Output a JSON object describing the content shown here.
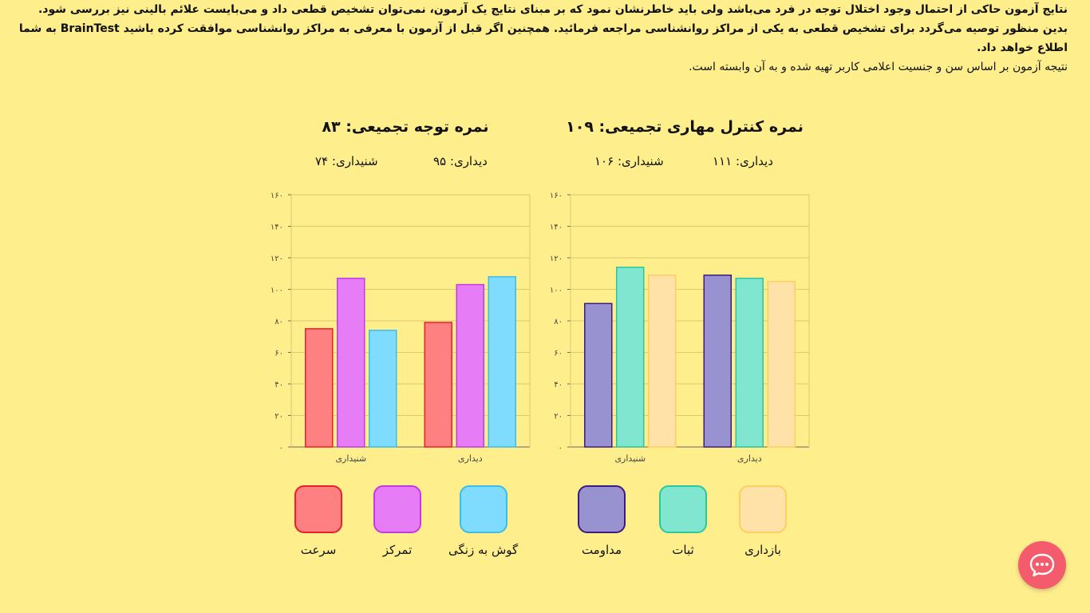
{
  "intro": {
    "line1": "نتایج آزمون حاکی از احتمال وجود اختلال توجه در فرد می‌باشد ولی باید خاطرنشان نمود که بر مبنای نتایج یک آزمون، نمی‌توان تشخیص قطعی داد و می‌بایست علائم بالینی نیز بررسی شود. بدین منظور توصیه می‌گردد برای تشخیص قطعی به یکی از مراکز روانشناسی مراجعه فرمائید. همچنین اگر قبل از آزمون با معرفی به مراکز روانشناسی موافقت کرده باشید BrainTest به شما اطلاع خواهد داد.",
    "line2": "نتیجه آزمون بر اساس سن و جنسیت اعلامی کاربر تهیه شده و به آن وابسته است."
  },
  "control_panel": {
    "title": "نمره کنترل مهاری تجمیعی: ۱۰۹",
    "visual": "دیداری: ۱۱۱",
    "auditory": "شنیداری: ۱۰۶"
  },
  "attention_panel": {
    "title": "نمره توجه تجمیعی: ۸۳",
    "visual": "دیداری: ۹۵",
    "auditory": "شنیداری: ۷۴"
  },
  "chart_data": [
    {
      "type": "bar",
      "categories": [
        "شنیداری",
        "دیداری"
      ],
      "ylim": [
        0,
        160
      ],
      "yticks": [
        "۰",
        "۲۰",
        "۴۰",
        "۶۰",
        "۸۰",
        "۱۰۰",
        "۱۲۰",
        "۱۴۰",
        "۱۶۰"
      ],
      "grid": true,
      "series": [
        {
          "name": "مداومت",
          "values": [
            91,
            109
          ],
          "fill": "#9893D0",
          "stroke": "#3D1A80"
        },
        {
          "name": "ثبات",
          "values": [
            114,
            107
          ],
          "fill": "#80E6CF",
          "stroke": "#2BC79A"
        },
        {
          "name": "بازداری",
          "values": [
            109,
            105
          ],
          "fill": "#FFE2A8",
          "stroke": "#FFCE63"
        }
      ]
    },
    {
      "type": "bar",
      "categories": [
        "شنیداری",
        "دیداری"
      ],
      "ylim": [
        0,
        160
      ],
      "yticks": [
        "۰",
        "۲۰",
        "۴۰",
        "۶۰",
        "۸۰",
        "۱۰۰",
        "۱۲۰",
        "۱۴۰",
        "۱۶۰"
      ],
      "grid": true,
      "series": [
        {
          "name": "سرعت",
          "values": [
            75,
            79
          ],
          "fill": "#FF8080",
          "stroke": "#E8202A"
        },
        {
          "name": "تمرکز",
          "values": [
            107,
            103
          ],
          "fill": "#E67CF6",
          "stroke": "#C23AE6"
        },
        {
          "name": "گوش به زنگی",
          "values": [
            74,
            108
          ],
          "fill": "#80DCFF",
          "stroke": "#3DBDE6"
        }
      ]
    }
  ],
  "chat_button": {
    "icon": "chat-bubble-icon",
    "color": "#F45B6C"
  }
}
